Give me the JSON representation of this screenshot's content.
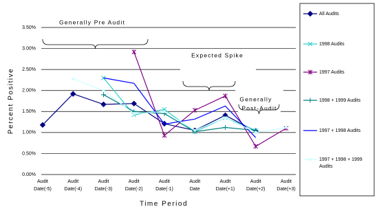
{
  "chart_data": {
    "type": "line",
    "x_label": "Time Period",
    "y_label": "Percent Positive",
    "categories": [
      "Audit Date(-5)",
      "Audit Date(-4)",
      "Audit Date(-3)",
      "Audit Date(-2)",
      "Audit Date(-1)",
      "Audit Date",
      "Audit Date(+1)",
      "Audit Date(+2)",
      "Audit Date(+3)"
    ],
    "ylim": [
      0,
      3.5
    ],
    "yticks": [
      {
        "value": 0,
        "label": "0.00%"
      },
      {
        "value": 0.5,
        "label": "0.50%"
      },
      {
        "value": 1,
        "label": "1.00%"
      },
      {
        "value": 1.5,
        "label": "1.50%"
      },
      {
        "value": 2,
        "label": "2.00%"
      },
      {
        "value": 2.5,
        "label": "2.50%"
      },
      {
        "value": 3,
        "label": "3.00%"
      },
      {
        "value": 3.5,
        "label": "3.50%"
      }
    ],
    "grid": true,
    "annotations": [
      "Generally Pre Audit",
      "Expected Spike",
      "Generally",
      "Post-Audit"
    ],
    "series": [
      {
        "name": "All Audits",
        "color": "#000080",
        "marker": "diamond",
        "values": [
          1.18,
          1.92,
          1.67,
          1.69,
          1.21,
          1.05,
          1.41,
          1.03,
          null
        ]
      },
      {
        "name": "1998 Audits",
        "color": "#33cccc",
        "marker": "x",
        "values": [
          null,
          null,
          2.3,
          1.42,
          1.55,
          1.02,
          1.35,
          1.05,
          null
        ]
      },
      {
        "name": "1997 Audits",
        "color": "#800080",
        "marker": "star",
        "values": [
          null,
          null,
          null,
          2.92,
          0.93,
          1.53,
          1.87,
          0.67,
          1.1
        ]
      },
      {
        "name": "1998 + 1999 Audits",
        "color": "#008080",
        "marker": "plus",
        "values": [
          null,
          null,
          1.9,
          1.5,
          1.45,
          1.02,
          1.12,
          1.05,
          null
        ]
      },
      {
        "name": "1997 + 1998 Audits",
        "color": "#0000ff",
        "marker": "none",
        "values": [
          null,
          null,
          2.3,
          2.17,
          1.2,
          1.32,
          1.63,
          0.88,
          null
        ]
      },
      {
        "name": "1997 + 1998 + 1999 Audits",
        "color": "#ccffff",
        "marker": "dot",
        "values": [
          null,
          2.28,
          2.0,
          1.45,
          1.5,
          1.05,
          1.35,
          1.0,
          1.12
        ]
      }
    ]
  }
}
